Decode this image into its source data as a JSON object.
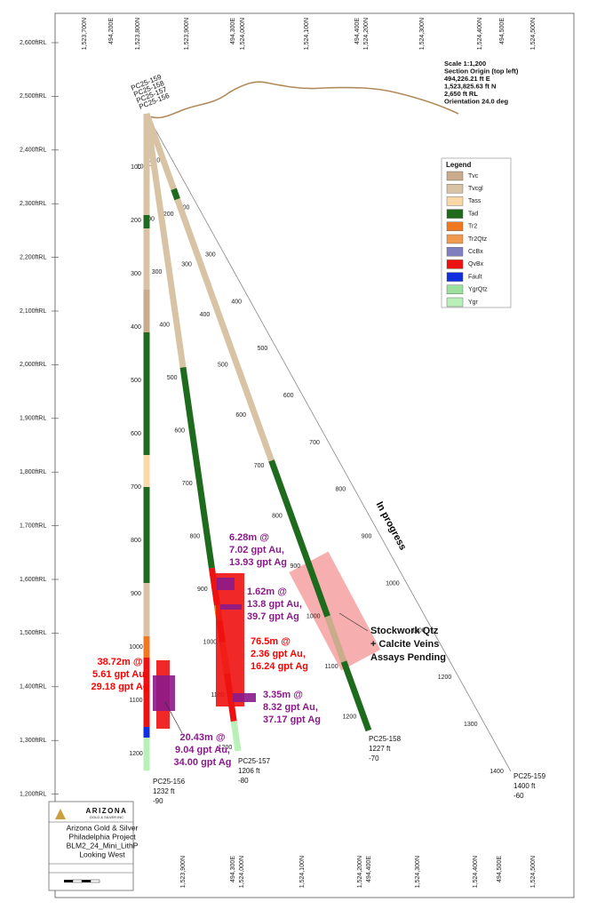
{
  "elevation_labels": [
    "2,600ftRL",
    "2,500ftRL",
    "2,400ftRL",
    "2,300ftRL",
    "2,200ftRL",
    "2,100ftRL",
    "2,000ftRL",
    "1,900ftRL",
    "1,800ftRL",
    "1,700ftRL",
    "1,600ftRL",
    "1,500ftRL",
    "1,400ftRL",
    "1,300ftRL",
    "1,200ftRL"
  ],
  "top_grid_labels": [
    "1,523,700N",
    "494,200E",
    "1,523,800N",
    "1,523,900N",
    "494,300E",
    "1,524,000N",
    "1,524,100N",
    "494,400E",
    "1,524,200N",
    "1,524,300N",
    "1,524,400N",
    "494,500E",
    "1,524,500N"
  ],
  "bottom_grid_labels": [
    "1,523,900N",
    "494,300E",
    "1,524,000N",
    "1,524,100N",
    "1,524,200N",
    "494,400E",
    "1,524,300N",
    "1,524,400N",
    "494,500E",
    "1,524,500N"
  ],
  "section_info": [
    "Scale 1:1,200",
    "Section Origin (top left)",
    "494,226.21 ft E",
    "1,523,825.63 ft N",
    "2,650 ft RL",
    "Orientation 24.0 deg"
  ],
  "legend": {
    "title": "Legend",
    "items": [
      {
        "label": "Tvc",
        "color": "#c9ac8c"
      },
      {
        "label": "Tvcgl",
        "color": "#d8c3a5"
      },
      {
        "label": "Tass",
        "color": "#fbd8a8"
      },
      {
        "label": "Tad",
        "color": "#1e6b1e"
      },
      {
        "label": "Tr2",
        "color": "#f07820"
      },
      {
        "label": "Tr2Qtz",
        "color": "#f09a50"
      },
      {
        "label": "CcBx",
        "color": "#8080c0"
      },
      {
        "label": "QvBx",
        "color": "#ee1111"
      },
      {
        "label": "Fault",
        "color": "#1030e0"
      },
      {
        "label": "YgrQtz",
        "color": "#9ee09e"
      },
      {
        "label": "Ygr",
        "color": "#b8f0b8"
      }
    ]
  },
  "holes": [
    {
      "name": "PC25-159",
      "depth_labels": [
        100,
        200,
        300,
        400,
        500,
        600,
        700,
        800,
        900,
        1000,
        1100,
        1200,
        1300,
        1400
      ],
      "end_label": [
        "PC25-159",
        "1400 ft",
        "-60"
      ]
    },
    {
      "name": "PC25-158",
      "depth_labels": [
        100,
        200,
        300,
        400,
        500,
        600,
        700,
        800,
        900,
        1000,
        1100,
        1200
      ],
      "end_label": [
        "PC25-158",
        "1227 ft",
        "-70"
      ]
    },
    {
      "name": "PC25-157",
      "depth_labels": [
        100,
        200,
        300,
        400,
        500,
        600,
        700,
        800,
        900,
        1000,
        1100,
        1200
      ],
      "end_label": [
        "PC25-157",
        "1206 ft",
        "-80"
      ]
    },
    {
      "name": "PC25-156",
      "depth_labels": [
        100,
        200,
        300,
        400,
        500,
        600,
        700,
        800,
        900,
        1000,
        1100,
        1200
      ],
      "end_label": [
        "PC25-156",
        "1232 ft",
        "-90"
      ]
    }
  ],
  "intercepts": [
    {
      "lines": [
        "6.28m @",
        "7.02 gpt Au,",
        "13.93 gpt Ag"
      ],
      "color": "#8b1a8b"
    },
    {
      "lines": [
        "1.62m @",
        "13.8 gpt Au,",
        "39.7 gpt Ag"
      ],
      "color": "#8b1a8b"
    },
    {
      "lines": [
        "76.5m @",
        "2.36 gpt Au,",
        "16.24 gpt Ag"
      ],
      "color": "#ff0000"
    },
    {
      "lines": [
        "3.35m @",
        "8.32 gpt Au,",
        "37.17 gpt Ag"
      ],
      "color": "#8b1a8b"
    },
    {
      "lines": [
        "38.72m @",
        "5.61 gpt Au,",
        "29.18 gpt Ag"
      ],
      "color": "#ff0000"
    },
    {
      "lines": [
        "20.43m @",
        "9.04 gpt Au,",
        "34.00 gpt Ag"
      ],
      "color": "#8b1a8b"
    }
  ],
  "annotation": [
    "Stockwork Qtz",
    "+ Calcite Veins",
    "Assays Pending"
  ],
  "progress_label": "In progress",
  "title_block": {
    "logo": "ARIZONA",
    "logo_sub": "GOLD & SILVER INC",
    "lines": [
      "Arizona Gold & Silver",
      "Philadelphia Project",
      "BLM2_24_Mini_LithP",
      "Looking West"
    ]
  }
}
